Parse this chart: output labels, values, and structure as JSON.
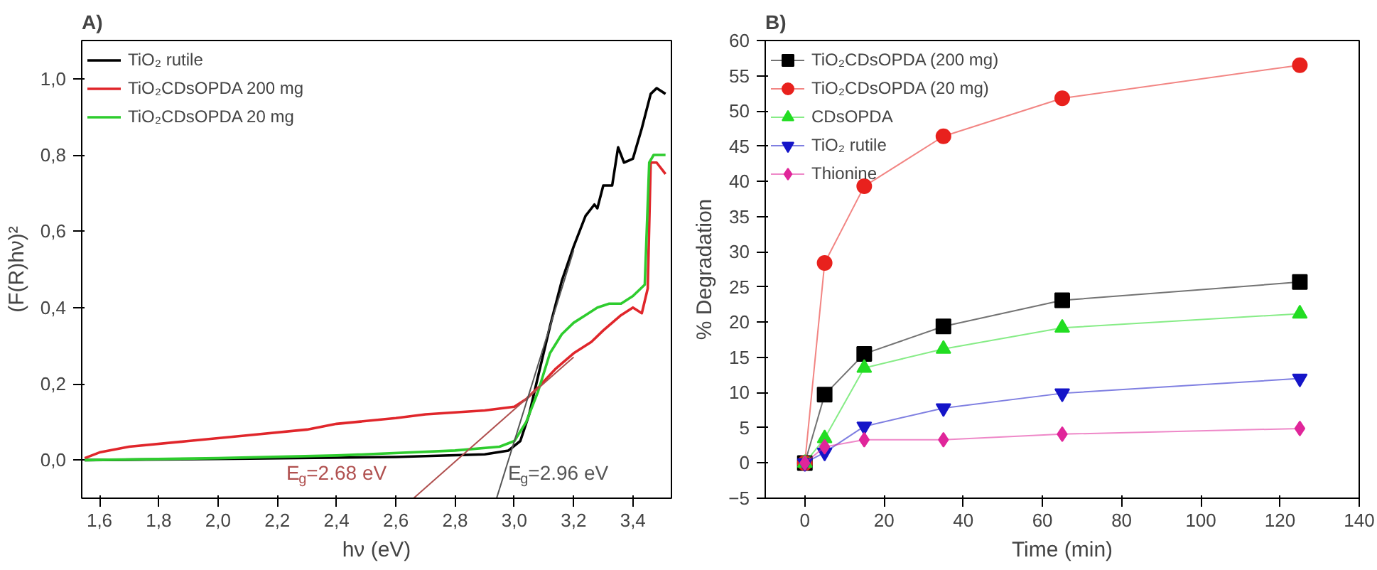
{
  "chart_data": [
    {
      "type": "line",
      "title": "A)",
      "xlabel": "hν (eV)",
      "ylabel": "(F(R)hν)²",
      "legend": "top left",
      "grid": false,
      "marker": "none",
      "xlim": [
        1.54,
        3.53
      ],
      "ylim": [
        -0.1,
        1.1
      ],
      "xticks": [
        {
          "value": 1.6,
          "label": "1,6"
        },
        {
          "value": 1.8,
          "label": "1,8"
        },
        {
          "value": 2.0,
          "label": "2,0"
        },
        {
          "value": 2.2,
          "label": "2,2"
        },
        {
          "value": 2.4,
          "label": "2,4"
        },
        {
          "value": 2.6,
          "label": "2,6"
        },
        {
          "value": 2.8,
          "label": "2,8"
        },
        {
          "value": 3.0,
          "label": "3,0"
        },
        {
          "value": 3.2,
          "label": "3,2"
        },
        {
          "value": 3.4,
          "label": "3,4"
        }
      ],
      "yticks": [
        {
          "value": 0.0,
          "label": "0,0"
        },
        {
          "value": 0.2,
          "label": "0,2"
        },
        {
          "value": 0.4,
          "label": "0,4"
        },
        {
          "value": 0.6,
          "label": "0,6"
        },
        {
          "value": 0.8,
          "label": "0,8"
        },
        {
          "value": 1.0,
          "label": "1,0"
        }
      ],
      "series": [
        {
          "name": "TiO₂ rutile",
          "color": "#000000",
          "x": [
            1.55,
            2.0,
            2.6,
            2.9,
            2.98,
            3.02,
            3.05,
            3.08,
            3.12,
            3.16,
            3.2,
            3.24,
            3.27,
            3.28,
            3.3,
            3.33,
            3.35,
            3.37,
            3.4,
            3.43,
            3.46,
            3.48,
            3.51
          ],
          "values": [
            0.0,
            0.003,
            0.008,
            0.015,
            0.025,
            0.05,
            0.12,
            0.22,
            0.35,
            0.47,
            0.56,
            0.64,
            0.67,
            0.66,
            0.72,
            0.72,
            0.82,
            0.78,
            0.79,
            0.87,
            0.96,
            0.975,
            0.96
          ]
        },
        {
          "name": "TiO₂CDsOPDA 200 mg",
          "color": "#e0262b",
          "x": [
            1.55,
            1.6,
            1.7,
            1.9,
            2.1,
            2.3,
            2.4,
            2.6,
            2.7,
            2.8,
            2.9,
            3.0,
            3.04,
            3.08,
            3.14,
            3.2,
            3.26,
            3.3,
            3.36,
            3.4,
            3.43,
            3.45,
            3.46,
            3.48,
            3.51
          ],
          "values": [
            0.005,
            0.02,
            0.035,
            0.05,
            0.065,
            0.08,
            0.095,
            0.11,
            0.12,
            0.125,
            0.13,
            0.14,
            0.16,
            0.19,
            0.24,
            0.28,
            0.31,
            0.34,
            0.38,
            0.4,
            0.385,
            0.45,
            0.78,
            0.78,
            0.75
          ]
        },
        {
          "name": "TiO₂CDsOPDA 20 mg",
          "color": "#2ecc2e",
          "x": [
            1.55,
            2.0,
            2.4,
            2.8,
            2.95,
            3.0,
            3.04,
            3.08,
            3.12,
            3.16,
            3.2,
            3.24,
            3.28,
            3.32,
            3.36,
            3.4,
            3.44,
            3.455,
            3.47,
            3.51
          ],
          "values": [
            0.0,
            0.005,
            0.012,
            0.025,
            0.035,
            0.05,
            0.1,
            0.18,
            0.28,
            0.33,
            0.36,
            0.38,
            0.4,
            0.41,
            0.41,
            0.43,
            0.46,
            0.78,
            0.8,
            0.8
          ]
        },
        {
          "color": "#b0504f",
          "x": [
            2.66,
            3.2
          ],
          "values": [
            -0.1,
            0.27
          ]
        },
        {
          "color": "#555555",
          "x": [
            2.94,
            3.2
          ],
          "values": [
            -0.1,
            0.55
          ]
        }
      ],
      "annotations": [
        "E$_{g}$=2.68 eV",
        "E$_{g}$=2.96 eV"
      ]
    },
    {
      "type": "line",
      "title": "B)",
      "xlabel": "Time (min)",
      "ylabel": "% Degradation",
      "legend": "top left",
      "grid": false,
      "xlim": [
        -10,
        140
      ],
      "ylim": [
        -5,
        60
      ],
      "xticks": [
        0,
        20,
        40,
        60,
        80,
        100,
        120,
        140
      ],
      "yticks": [
        -5,
        0,
        5,
        10,
        15,
        20,
        25,
        30,
        35,
        40,
        45,
        50,
        55,
        60
      ],
      "x": [
        0,
        5,
        15,
        35,
        65,
        125
      ],
      "series": [
        {
          "name": "TiO₂CDsOPDA (200 mg)",
          "color": "#000000",
          "marker": "square",
          "values": [
            0,
            9.7,
            15.5,
            19.4,
            23.1,
            25.7
          ]
        },
        {
          "name": "TiO₂CDsOPDA (20 mg)",
          "color": "#e8211d",
          "marker": "circle",
          "values": [
            0,
            28.4,
            39.3,
            46.4,
            51.8,
            56.5
          ]
        },
        {
          "name": "CDsOPDA",
          "color": "#22dd22",
          "marker": "triangle",
          "values": [
            0,
            3.5,
            13.5,
            16.2,
            19.2,
            21.2
          ]
        },
        {
          "name": "TiO₂ rutile",
          "color": "#1515c8",
          "marker": "triangle",
          "values": [
            0,
            1.5,
            5.2,
            7.8,
            9.9,
            12.0
          ]
        },
        {
          "name": "Thionine",
          "color": "#e0269a",
          "marker": "diamond",
          "values": [
            0,
            2.3,
            3.3,
            3.3,
            4.1,
            4.9
          ]
        }
      ]
    }
  ]
}
